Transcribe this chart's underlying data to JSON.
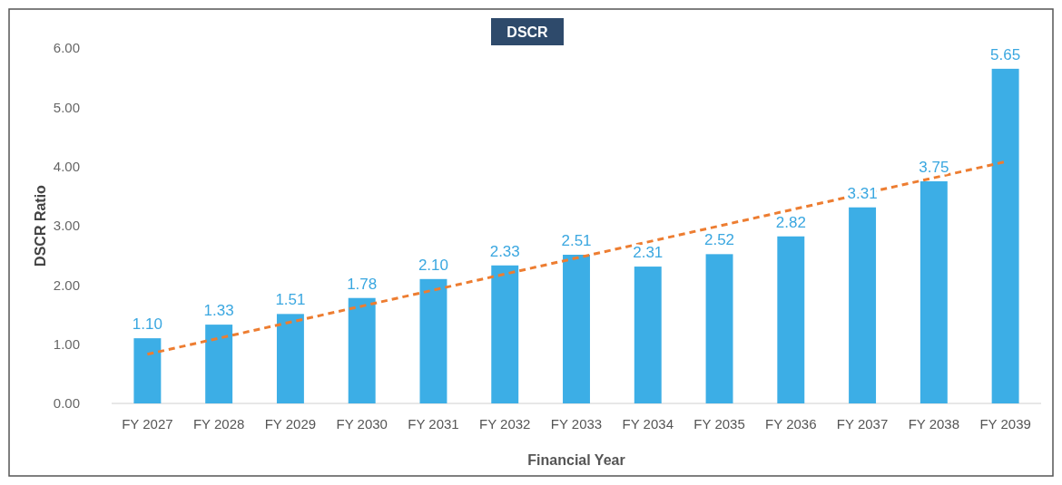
{
  "chart_data": {
    "type": "bar",
    "title": "DSCR",
    "xlabel": "Financial Year",
    "ylabel": "DSCR Ratio",
    "categories": [
      "FY 2027",
      "FY 2028",
      "FY 2029",
      "FY 2030",
      "FY 2031",
      "FY 2032",
      "FY 2033",
      "FY 2034",
      "FY 2035",
      "FY 2036",
      "FY 2037",
      "FY 2038",
      "FY 2039"
    ],
    "series": [
      {
        "color": "#3caee6",
        "values": [
          1.1,
          1.33,
          1.51,
          1.78,
          2.1,
          2.33,
          2.51,
          2.31,
          2.52,
          2.82,
          3.31,
          3.75,
          5.65
        ],
        "value_labels": [
          "1.10",
          "1.33",
          "1.51",
          "1.78",
          "2.10",
          "2.33",
          "2.51",
          "2.31",
          "2.52",
          "2.82",
          "3.31",
          "3.75",
          "5.65"
        ]
      },
      {
        "type": "line",
        "color": "#ed7d31",
        "line_style": "dashed",
        "x": [
          "FY 2027",
          "FY 2039"
        ],
        "values": [
          0.83,
          4.08
        ]
      }
    ],
    "ylim": [
      0,
      6
    ],
    "yticks": [
      {
        "value": 0,
        "label": "0.00"
      },
      {
        "value": 1,
        "label": "1.00"
      },
      {
        "value": 2,
        "label": "2.00"
      },
      {
        "value": 3,
        "label": "3.00"
      },
      {
        "value": 4,
        "label": "4.00"
      },
      {
        "value": 5,
        "label": "5.00"
      },
      {
        "value": 6,
        "label": "6.00"
      }
    ],
    "grid": false
  }
}
